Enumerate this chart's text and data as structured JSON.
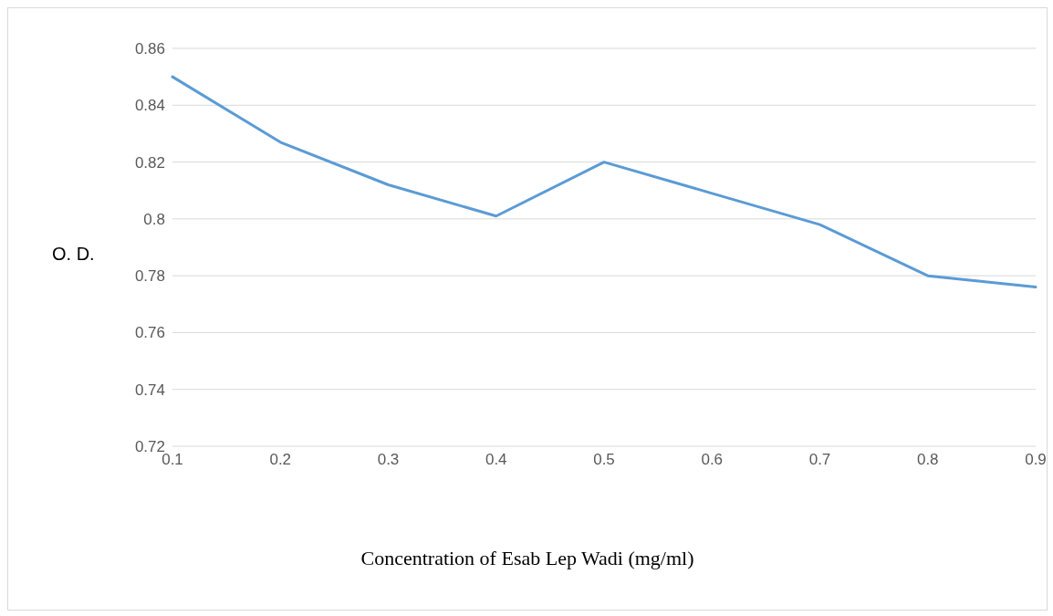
{
  "chart_data": {
    "type": "line",
    "xlabel": "Concentration of Esab Lep Wadi (mg/ml)",
    "ylabel": "O. D.",
    "categories": [
      "0.1",
      "0.2",
      "0.3",
      "0.4",
      "0.5",
      "0.6",
      "0.7",
      "0.8",
      "0.9"
    ],
    "series": [
      {
        "color": "#5b9bd5",
        "values": [
          0.85,
          0.827,
          0.812,
          0.801,
          0.82,
          0.809,
          0.798,
          0.78,
          0.776
        ]
      }
    ],
    "ylim": [
      0.72,
      0.86
    ],
    "yticks": [
      0.72,
      0.74,
      0.76,
      0.78,
      0.8,
      0.82,
      0.84,
      0.86
    ],
    "grid": "y",
    "marker": "none",
    "line_style": "solid",
    "legend": false
  }
}
